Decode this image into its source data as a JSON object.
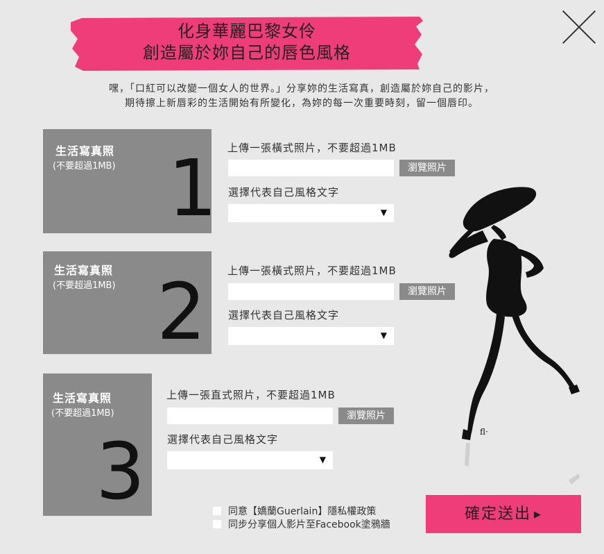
{
  "header": {
    "title_line1": "化身華麗巴黎女伶",
    "title_line2": "創造屬於妳自己的唇色風格"
  },
  "intro": {
    "line1": "嘿，「口紅可以改變一個女人的世界。」分享妳的生活寫真，創造屬於妳自己的影片，",
    "line2": "期待擦上新唇彩的生活開始有所變化，為妳的每一次重要時刻，留一個唇印。"
  },
  "sections": [
    {
      "title": "生活寫真照",
      "note": "(不要超過1MB)",
      "number": "1",
      "upload_label": "上傳一張橫式照片，不要超過1MB",
      "browse_label": "瀏覽照片",
      "style_label": "選擇代表自己風格文字",
      "selected_value": ""
    },
    {
      "title": "生活寫真照",
      "note": "(不要超過1MB)",
      "number": "2",
      "upload_label": "上傳一張橫式照片，不要超過1MB",
      "browse_label": "瀏覽照片",
      "style_label": "選擇代表自己風格文字",
      "selected_value": ""
    },
    {
      "title": "生活寫真照",
      "note": "(不要超過1MB)",
      "number": "3",
      "upload_label": "上傳一張直式照片，不要超過1MB",
      "browse_label": "瀏覽照片",
      "style_label": "選擇代表自己風格文字",
      "selected_value": ""
    }
  ],
  "consent": {
    "privacy_label": "同意【嬌蘭Guerlain】隱私權政策",
    "facebook_label": "同步分享個人影片至Facebook塗鴉牆"
  },
  "submit": {
    "label": "確定送出"
  },
  "icons": {
    "close": "close-icon",
    "dropdown": "triangle-down-icon",
    "submit_arrow": "triangle-right-icon",
    "illustration": "fashion-woman-sketch"
  },
  "colors": {
    "accent": "#ee3d79",
    "box_gray": "#8a8a8a",
    "background": "#e8e8e8"
  }
}
